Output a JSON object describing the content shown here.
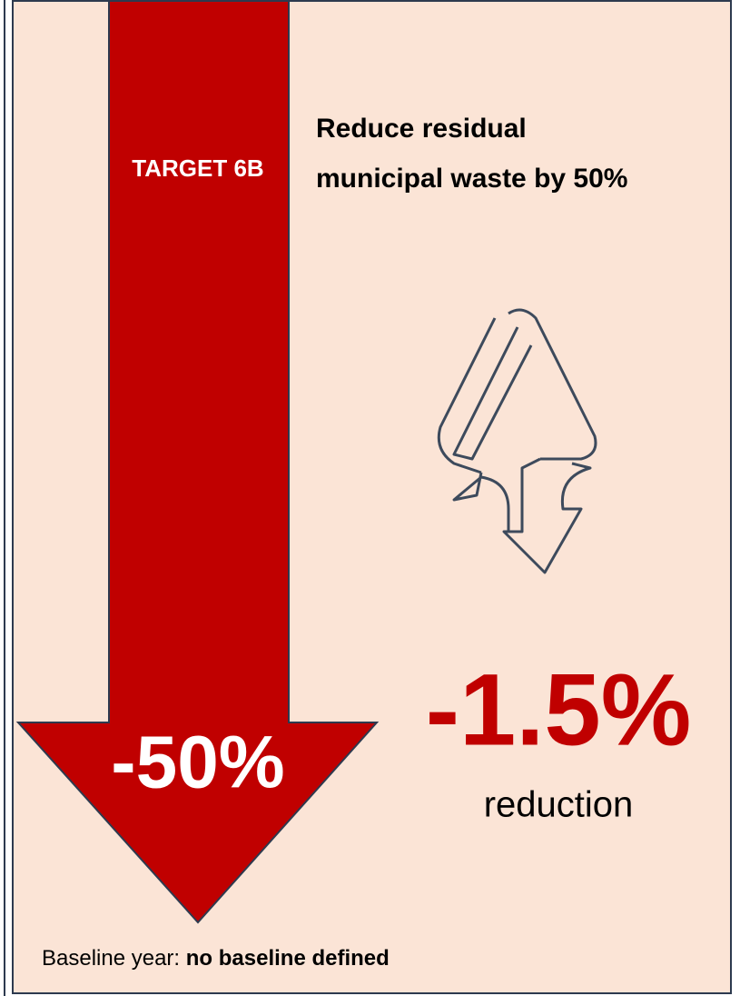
{
  "target_label": "TARGET 6B",
  "title_lines": [
    "Reduce residual",
    "municipal waste by 50%"
  ],
  "target_value": "-50%",
  "current_value": "-1.5%",
  "current_caption": "reduction",
  "baseline": {
    "label": "Baseline year:",
    "value": "no baseline defined"
  }
}
